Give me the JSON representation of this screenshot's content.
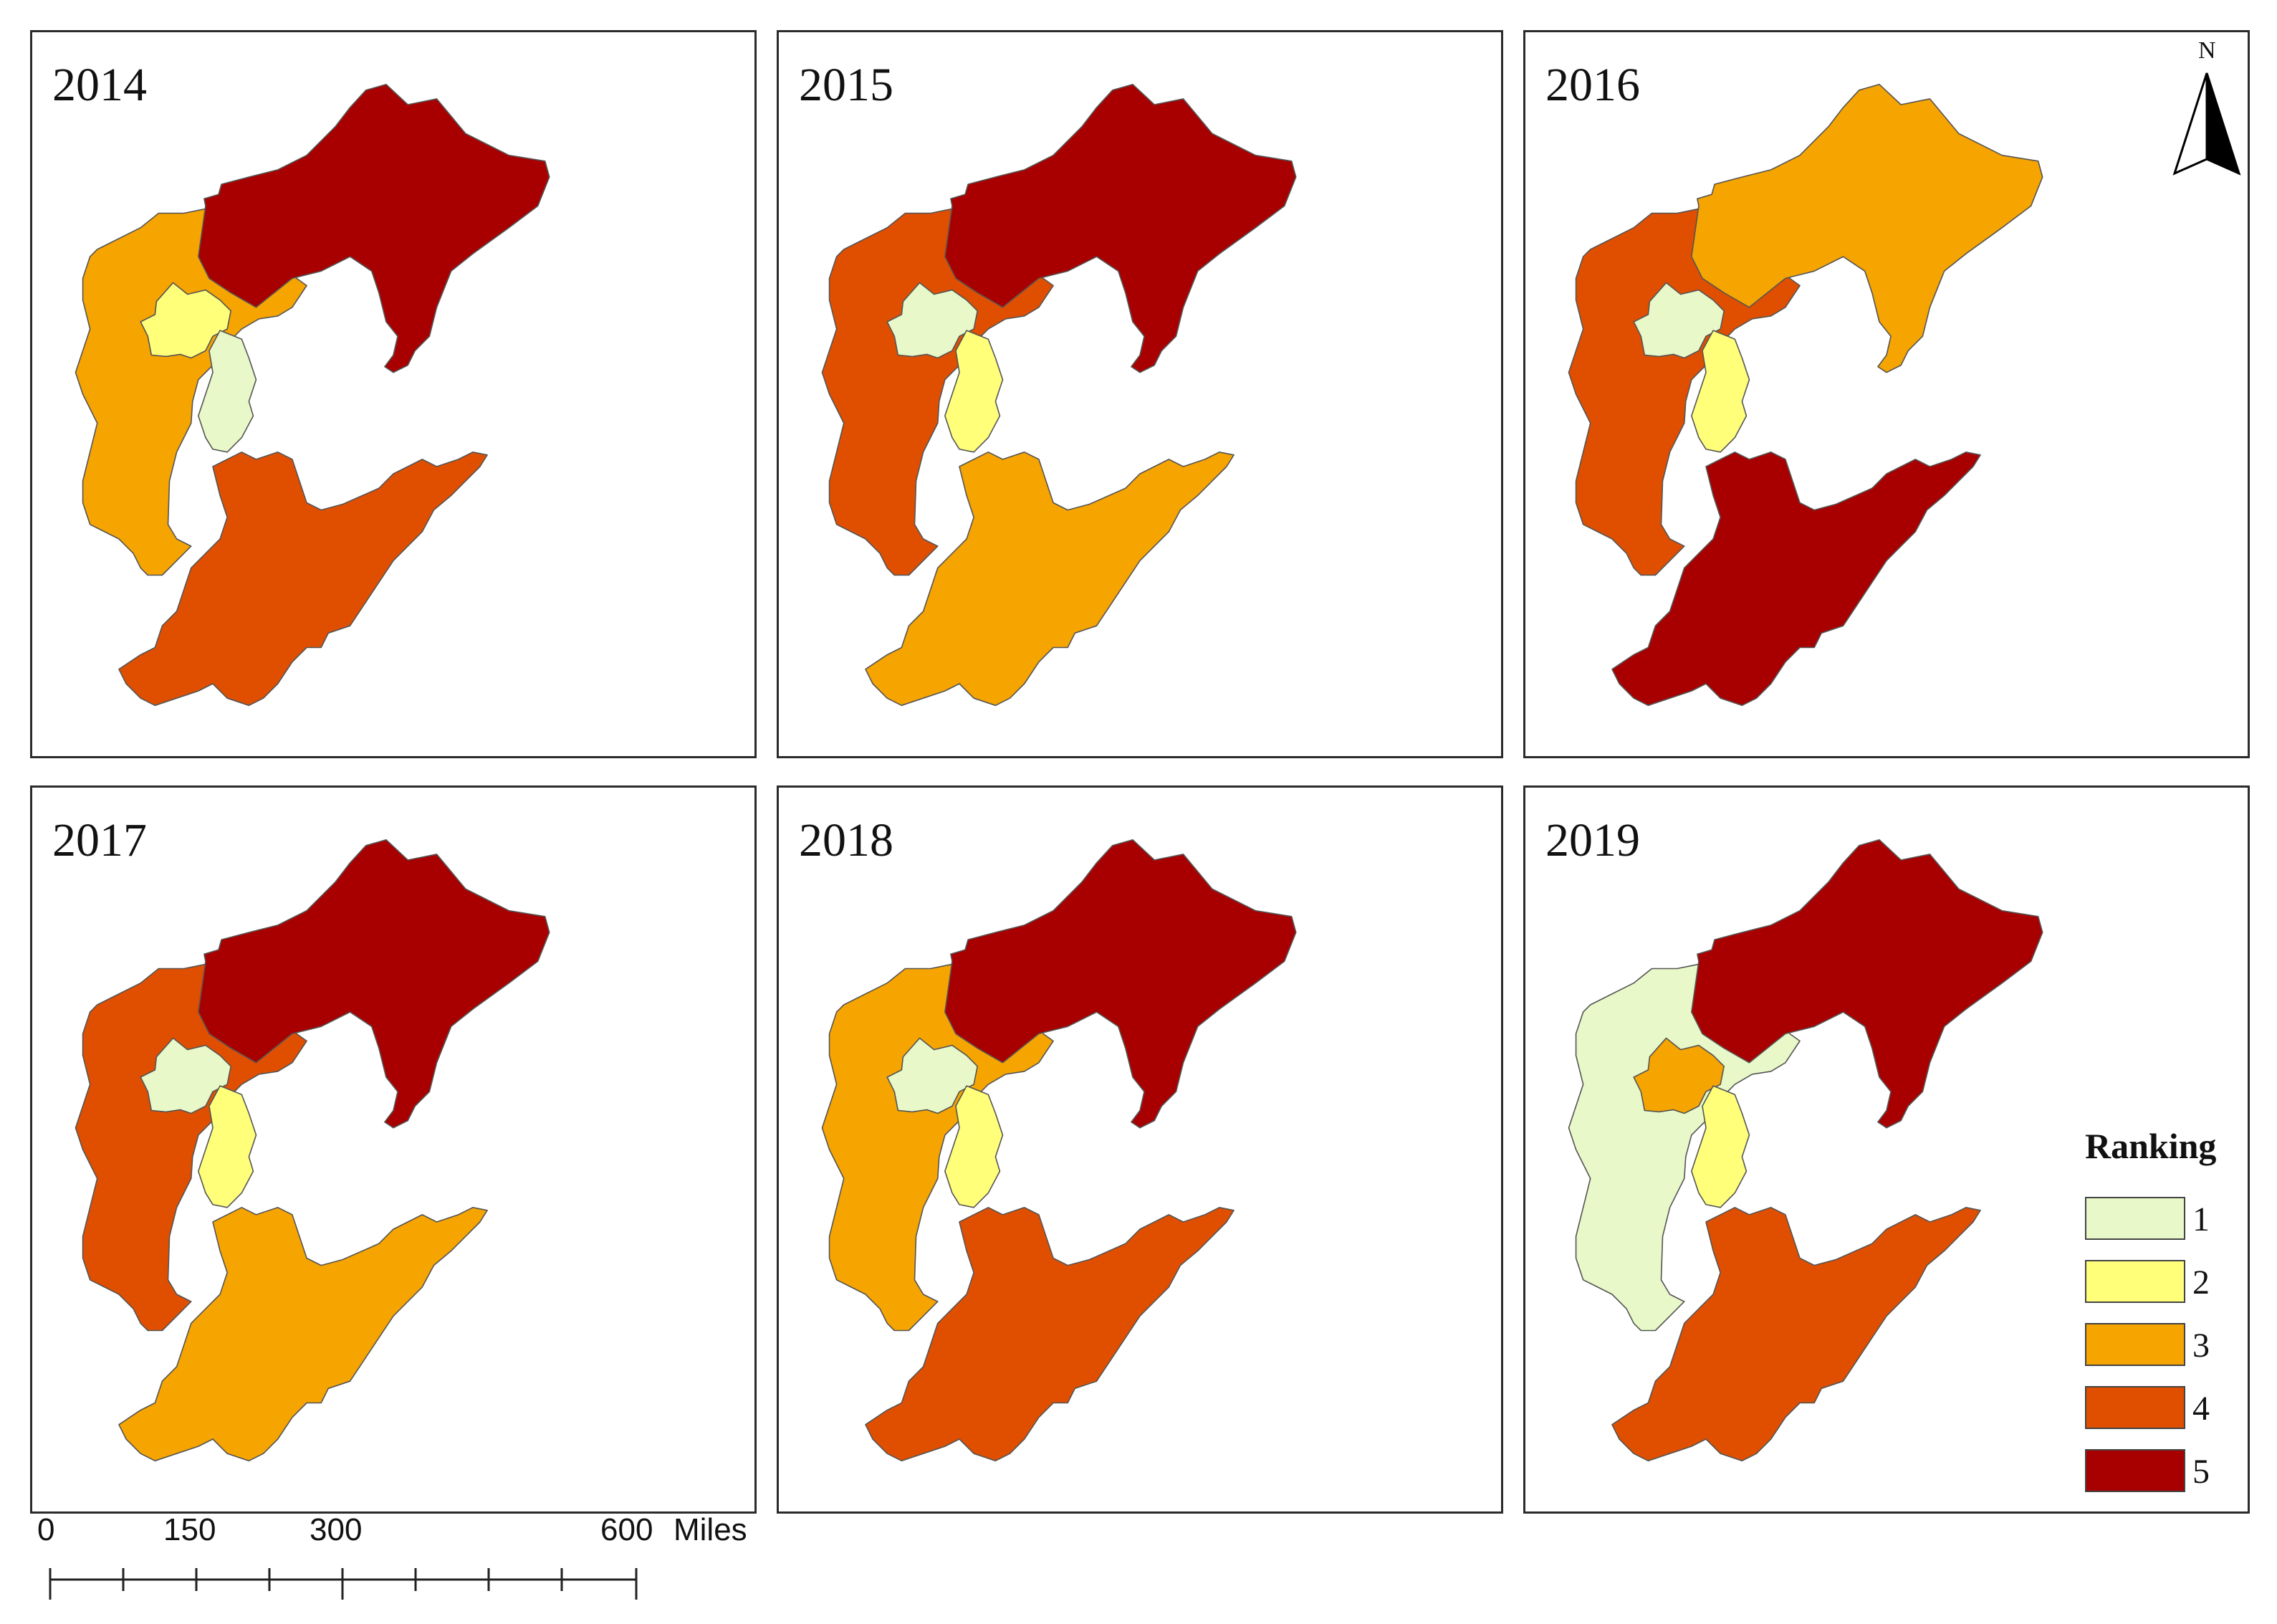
{
  "maps": [
    {
      "year": "2014",
      "ranks": {
        "inner_west": 3,
        "beijing": 2,
        "tianjin": 1,
        "south": 4,
        "northeast": 5
      }
    },
    {
      "year": "2015",
      "ranks": {
        "inner_west": 4,
        "beijing": 1,
        "tianjin": 2,
        "south": 3,
        "northeast": 5
      }
    },
    {
      "year": "2016",
      "ranks": {
        "inner_west": 4,
        "beijing": 1,
        "tianjin": 2,
        "south": 5,
        "northeast": 3
      }
    },
    {
      "year": "2017",
      "ranks": {
        "inner_west": 4,
        "beijing": 1,
        "tianjin": 2,
        "south": 3,
        "northeast": 5
      }
    },
    {
      "year": "2018",
      "ranks": {
        "inner_west": 3,
        "beijing": 1,
        "tianjin": 2,
        "south": 4,
        "northeast": 5
      }
    },
    {
      "year": "2019",
      "ranks": {
        "inner_west": 1,
        "beijing": 3,
        "tianjin": 2,
        "south": 4,
        "northeast": 5
      }
    }
  ],
  "legend": {
    "title": "Ranking",
    "items": [
      {
        "label": "1",
        "color": "#e8f8c8"
      },
      {
        "label": "2",
        "color": "#ffff7a"
      },
      {
        "label": "3",
        "color": "#f6a400"
      },
      {
        "label": "4",
        "color": "#e04f00"
      },
      {
        "label": "5",
        "color": "#a80000"
      }
    ]
  },
  "north_arrow": {
    "letter": "N",
    "icon": "north-arrow-icon"
  },
  "scale_bar": {
    "labels": [
      "0",
      "150",
      "300",
      "600"
    ],
    "unit": "Miles"
  }
}
